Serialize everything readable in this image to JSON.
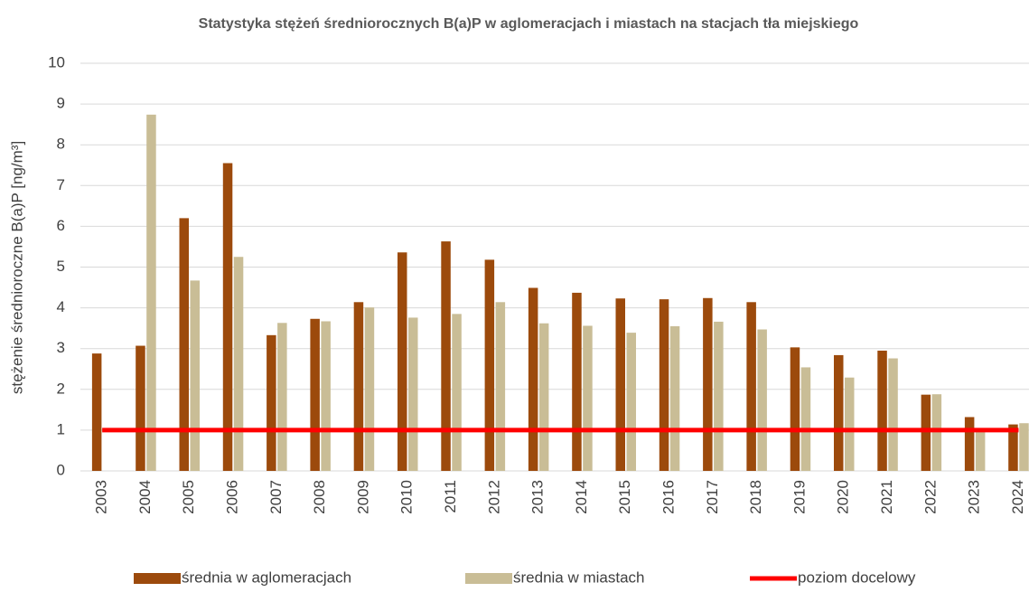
{
  "chart_data": {
    "type": "bar",
    "title": "Statystyka stężeń średniorocznych B(a)P w aglomeracjach i miastach na stacjach tła miejskiego",
    "y_label": "stężenie średnioroczne B(a)P [ng/m³]",
    "categories": [
      "2003",
      "2004",
      "2005",
      "2006",
      "2007",
      "2008",
      "2009",
      "2010",
      "2011",
      "2012",
      "2013",
      "2014",
      "2015",
      "2016",
      "2017",
      "2018",
      "2019",
      "2020",
      "2021",
      "2022",
      "2023",
      "2024"
    ],
    "series": [
      {
        "name": "średnia w aglomeracjach",
        "type": "bar",
        "color": "#9c4a0c",
        "values": [
          2.88,
          3.07,
          6.2,
          7.55,
          3.33,
          3.73,
          4.14,
          5.36,
          5.63,
          5.18,
          4.49,
          4.37,
          4.23,
          4.21,
          4.24,
          4.14,
          3.03,
          2.84,
          2.95,
          1.87,
          1.32,
          1.14
        ]
      },
      {
        "name": "średnia w miastach",
        "type": "bar",
        "color": "#c9bd96",
        "values": [
          null,
          8.74,
          4.67,
          5.25,
          3.63,
          3.67,
          4.01,
          3.76,
          3.85,
          4.14,
          3.62,
          3.56,
          3.39,
          3.55,
          3.66,
          3.47,
          2.54,
          2.29,
          2.76,
          1.88,
          1.0,
          1.17
        ]
      },
      {
        "name": "poziom docelowy",
        "type": "line",
        "color": "#ff0000",
        "values": [
          1,
          1,
          1,
          1,
          1,
          1,
          1,
          1,
          1,
          1,
          1,
          1,
          1,
          1,
          1,
          1,
          1,
          1,
          1,
          1,
          1,
          1
        ]
      }
    ],
    "ylim": [
      0,
      10
    ],
    "yticks": [
      0,
      1,
      2,
      3,
      4,
      5,
      6,
      7,
      8,
      9,
      10
    ],
    "grid": true,
    "legend": "bottom"
  }
}
